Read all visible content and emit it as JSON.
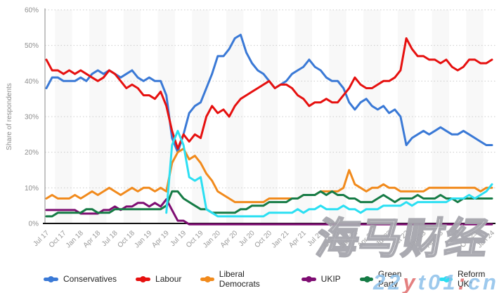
{
  "watermarks": {
    "cjk": "海马财经",
    "site_spans": [
      {
        "text": "22",
        "color": "#8cc0ea"
      },
      {
        "text": "y",
        "color": "#e06a6a"
      },
      {
        "text": "t01",
        "color": "#8cc0ea"
      },
      {
        "text": ":",
        "color": "#e06a6a"
      },
      {
        "text": "cn",
        "color": "#8cc0ea"
      }
    ]
  },
  "chart_data": {
    "type": "line",
    "title": "",
    "xlabel": "",
    "ylabel": "Share of respondents",
    "ylim": [
      0,
      60
    ],
    "grid": "dotted horizontal lines every 10%",
    "background": "alternating quarterly light-gray vertical bands",
    "legend_position": "bottom",
    "x_unit": "monthly, Jul 2017 - Jan 2024",
    "x_tick_labels": [
      "Jul 17",
      "Oct 17",
      "Jan 18",
      "Apr 18",
      "Jul 18",
      "Oct 18",
      "Jan 19",
      "Apr 19",
      "Jul 19",
      "Oct 19",
      "Jan 20",
      "Apr 20",
      "Jul 20",
      "Oct 20",
      "Jan 21",
      "Apr 21",
      "Jul 21",
      "Oct 21",
      "Jan 22",
      "Apr 22",
      "Jul 22",
      "Oct 22",
      "Jan 23",
      "Apr 23",
      "Jul 23",
      "Oct 23",
      "Jan 24"
    ],
    "y_tick_labels": [
      "0%",
      "10%",
      "20%",
      "30%",
      "40%",
      "50%",
      "60%"
    ],
    "series": [
      {
        "name": "Conservatives",
        "color": "#3A79D6",
        "values": [
          38,
          41,
          41,
          40,
          40,
          40,
          41,
          40,
          42,
          43,
          42,
          43,
          42,
          41,
          42,
          43,
          41,
          40,
          41,
          40,
          40,
          36,
          24,
          20,
          25,
          31,
          33,
          34,
          38,
          42,
          47,
          47,
          49,
          52,
          53,
          48,
          45,
          43,
          42,
          40,
          38,
          39,
          40,
          42,
          43,
          44,
          46,
          44,
          43,
          41,
          40,
          40,
          38,
          34,
          32,
          34,
          35,
          33,
          32,
          33,
          31,
          32,
          30,
          22,
          24,
          25,
          26,
          25,
          26,
          27,
          26,
          25,
          25,
          26,
          25,
          24,
          23,
          22,
          22
        ]
      },
      {
        "name": "Labour",
        "color": "#E6100F",
        "values": [
          46,
          43,
          43,
          42,
          43,
          42,
          43,
          42,
          41,
          40,
          41,
          43,
          42,
          40,
          38,
          39,
          38,
          36,
          36,
          35,
          37,
          33,
          26,
          21,
          25,
          23,
          25,
          24,
          30,
          33,
          31,
          32,
          30,
          33,
          35,
          36,
          37,
          38,
          39,
          40,
          38,
          39,
          39,
          38,
          36,
          35,
          33,
          34,
          34,
          35,
          34,
          34,
          36,
          38,
          41,
          39,
          38,
          38,
          39,
          40,
          40,
          41,
          43,
          52,
          49,
          47,
          47,
          46,
          46,
          45,
          46,
          44,
          43,
          44,
          46,
          46,
          45,
          45,
          46
        ]
      },
      {
        "name": "Liberal Democrats",
        "color": "#F18A1C",
        "values": [
          7,
          8,
          7,
          7,
          7,
          8,
          7,
          8,
          9,
          8,
          9,
          10,
          9,
          8,
          9,
          10,
          9,
          10,
          10,
          9,
          10,
          9,
          17,
          20,
          21,
          18,
          19,
          17,
          14,
          12,
          9,
          8,
          7,
          6,
          6,
          6,
          6,
          6,
          6,
          7,
          7,
          7,
          7,
          7,
          7,
          8,
          8,
          8,
          9,
          9,
          9,
          9,
          10,
          15,
          11,
          10,
          9,
          10,
          10,
          11,
          10,
          10,
          9,
          9,
          9,
          9,
          9,
          10,
          10,
          10,
          10,
          10,
          10,
          10,
          10,
          10,
          9,
          10,
          10
        ]
      },
      {
        "name": "UKIP",
        "color": "#7E0D72",
        "values": [
          4,
          4,
          4,
          4,
          4,
          4,
          3,
          3,
          3,
          3,
          4,
          4,
          5,
          4,
          5,
          5,
          6,
          6,
          5,
          6,
          5,
          7,
          4,
          1,
          1,
          0,
          0,
          0,
          0,
          0,
          0,
          0,
          0,
          0,
          0,
          0,
          0,
          0,
          0,
          0,
          0,
          0,
          0,
          0,
          0,
          0,
          0,
          0,
          0,
          0,
          0,
          0,
          0,
          0,
          0,
          0,
          0,
          0,
          0,
          0,
          0,
          0,
          0,
          0,
          0,
          0,
          0,
          0,
          0,
          0,
          0,
          0,
          0,
          0,
          0,
          0,
          0,
          0,
          0
        ]
      },
      {
        "name": "Green Party",
        "color": "#157B45",
        "values": [
          2,
          2,
          3,
          3,
          3,
          3,
          3,
          4,
          4,
          3,
          3,
          3,
          4,
          4,
          4,
          4,
          4,
          4,
          4,
          4,
          4,
          5,
          9,
          9,
          7,
          6,
          5,
          4,
          4,
          3,
          3,
          3,
          3,
          3,
          4,
          4,
          5,
          5,
          5,
          6,
          6,
          6,
          6,
          7,
          7,
          8,
          8,
          8,
          9,
          8,
          9,
          8,
          8,
          7,
          7,
          6,
          6,
          6,
          7,
          8,
          7,
          6,
          7,
          7,
          7,
          8,
          7,
          7,
          7,
          8,
          7,
          7,
          6,
          7,
          7,
          7,
          7,
          7,
          7
        ]
      },
      {
        "name": "Reform UK*",
        "color": "#2BDFF2",
        "values": [
          null,
          null,
          null,
          null,
          null,
          null,
          null,
          null,
          null,
          null,
          null,
          null,
          null,
          null,
          null,
          null,
          null,
          null,
          null,
          null,
          null,
          3,
          22,
          26,
          22,
          13,
          12,
          13,
          4,
          3,
          2,
          2,
          2,
          2,
          2,
          2,
          2,
          2,
          2,
          3,
          3,
          3,
          3,
          3,
          4,
          3,
          4,
          4,
          5,
          4,
          4,
          4,
          5,
          4,
          4,
          3,
          4,
          4,
          4,
          5,
          5,
          5,
          5,
          6,
          5,
          6,
          6,
          6,
          6,
          6,
          6,
          7,
          7,
          7,
          8,
          7,
          8,
          9,
          11
        ]
      }
    ]
  }
}
